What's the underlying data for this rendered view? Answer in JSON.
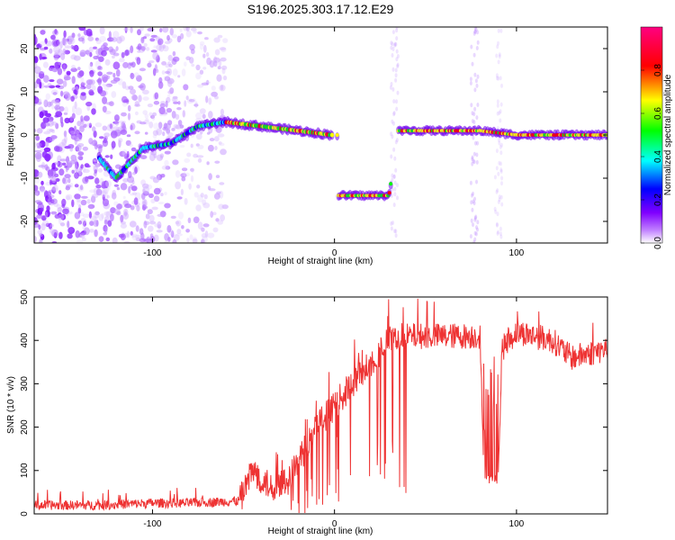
{
  "title": "S196.2025.303.17.12.E29",
  "chart_data": [
    {
      "type": "heatmap",
      "xlabel": "Height of straight line (km)",
      "ylabel": "Frequency (Hz)",
      "xlim": [
        -165,
        150
      ],
      "ylim": [
        -25,
        25
      ],
      "xticks": [
        -100,
        0,
        100
      ],
      "yticks": [
        -20,
        -10,
        0,
        10,
        20
      ],
      "colorbar": {
        "label": "Normalized spectral amplitude",
        "range": [
          0.0,
          1.0
        ],
        "ticks": [
          0.0,
          0.2,
          0.4,
          0.6,
          0.8
        ],
        "colormap": [
          "#ffffff",
          "#8000ff",
          "#0000ff",
          "#00ffff",
          "#00ff00",
          "#ffff00",
          "#ff0000",
          "#ff0080"
        ]
      },
      "ridge": [
        {
          "x": -130,
          "y": -5
        },
        {
          "x": -120,
          "y": -10
        },
        {
          "x": -105,
          "y": -3
        },
        {
          "x": -90,
          "y": -2
        },
        {
          "x": -75,
          "y": 2
        },
        {
          "x": -60,
          "y": 3
        },
        {
          "x": -40,
          "y": 2
        },
        {
          "x": -20,
          "y": 1
        },
        {
          "x": -2,
          "y": 0
        },
        {
          "x": 2,
          "y": -14
        },
        {
          "x": 15,
          "y": -14
        },
        {
          "x": 30,
          "y": -14
        },
        {
          "x": 35,
          "y": 1
        },
        {
          "x": 60,
          "y": 1
        },
        {
          "x": 80,
          "y": 1
        },
        {
          "x": 100,
          "y": 0
        },
        {
          "x": 150,
          "y": 0
        }
      ]
    },
    {
      "type": "line",
      "xlabel": "Height of straight line (km)",
      "ylabel": "SNR (10 * v/v)",
      "xlim": [
        -165,
        150
      ],
      "ylim": [
        0,
        500
      ],
      "xticks": [
        -100,
        0,
        100
      ],
      "yticks": [
        0,
        100,
        200,
        300,
        400,
        500
      ],
      "color": "#ee3333",
      "trend": [
        {
          "x": -165,
          "y": 20
        },
        {
          "x": -130,
          "y": 20
        },
        {
          "x": -100,
          "y": 25
        },
        {
          "x": -80,
          "y": 25
        },
        {
          "x": -52,
          "y": 30
        },
        {
          "x": -45,
          "y": 100
        },
        {
          "x": -35,
          "y": 60
        },
        {
          "x": -25,
          "y": 80
        },
        {
          "x": -10,
          "y": 200
        },
        {
          "x": 0,
          "y": 250
        },
        {
          "x": 10,
          "y": 300
        },
        {
          "x": 20,
          "y": 350
        },
        {
          "x": 30,
          "y": 400
        },
        {
          "x": 40,
          "y": 410
        },
        {
          "x": 60,
          "y": 410
        },
        {
          "x": 80,
          "y": 410
        },
        {
          "x": 82,
          "y": 80
        },
        {
          "x": 90,
          "y": 80
        },
        {
          "x": 92,
          "y": 380
        },
        {
          "x": 100,
          "y": 420
        },
        {
          "x": 120,
          "y": 400
        },
        {
          "x": 130,
          "y": 360
        },
        {
          "x": 150,
          "y": 380
        }
      ]
    }
  ]
}
